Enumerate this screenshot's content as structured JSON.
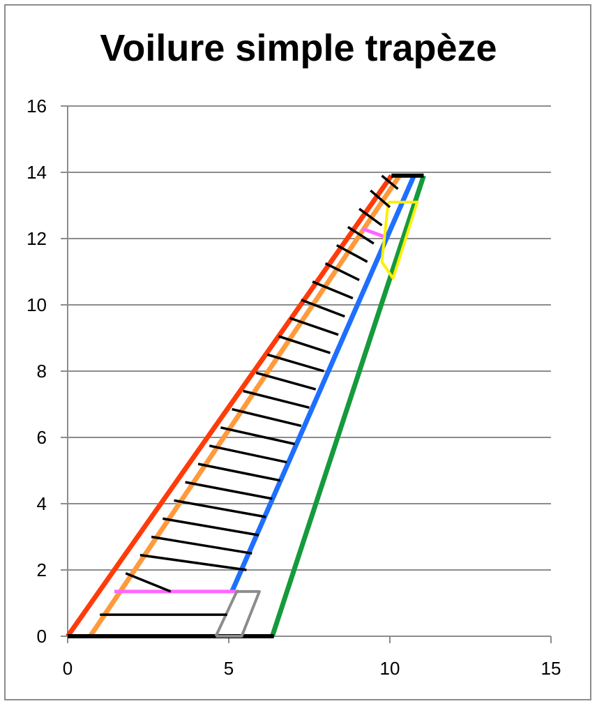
{
  "chart_data": {
    "type": "scatter",
    "title": "Voilure simple trapèze",
    "xlabel": "",
    "ylabel": "",
    "xlim": [
      0,
      15
    ],
    "ylim": [
      0,
      16
    ],
    "x_ticks": [
      0,
      5,
      10,
      15
    ],
    "y_ticks": [
      0,
      2,
      4,
      6,
      8,
      10,
      12,
      14,
      16
    ],
    "grid": {
      "horizontal": true,
      "vertical": false
    },
    "legend": "none",
    "series": [
      {
        "color": "#ff3b0a",
        "width": 7,
        "points": [
          [
            0,
            0
          ],
          [
            10.05,
            13.9
          ]
        ]
      },
      {
        "color": "#ff9a3c",
        "width": 7,
        "points": [
          [
            0.7,
            0
          ],
          [
            10.3,
            13.9
          ]
        ]
      },
      {
        "color": "#1e6fff",
        "width": 7,
        "points": [
          [
            5.1,
            1.35
          ],
          [
            10.75,
            13.9
          ]
        ]
      },
      {
        "color": "#159a3c",
        "width": 7,
        "points": [
          [
            6.35,
            0
          ],
          [
            11.05,
            13.9
          ]
        ]
      },
      {
        "color": "#000000",
        "width": 6,
        "points": [
          [
            0,
            0
          ],
          [
            6.4,
            0
          ]
        ]
      },
      {
        "color": "#000000",
        "width": 6,
        "points": [
          [
            10.05,
            13.9
          ],
          [
            11.05,
            13.9
          ]
        ]
      },
      {
        "color": "#ff66ff",
        "width": 5,
        "points": [
          [
            1.45,
            1.35
          ],
          [
            5.3,
            1.35
          ]
        ]
      },
      {
        "color": "#ff66ff",
        "width": 5,
        "points": [
          [
            9.15,
            12.3
          ],
          [
            9.85,
            12.05
          ]
        ]
      },
      {
        "color": "#8c8c8c",
        "width": 4,
        "points": [
          [
            4.6,
            0
          ],
          [
            5.4,
            0
          ],
          [
            5.95,
            1.35
          ],
          [
            5.25,
            1.35
          ],
          [
            4.6,
            0
          ]
        ]
      },
      {
        "color": "#ffee00",
        "width": 4,
        "points": [
          [
            9.95,
            13.1
          ],
          [
            10.85,
            13.1
          ],
          [
            10.1,
            10.8
          ],
          [
            9.75,
            11.3
          ],
          [
            9.95,
            13.1
          ]
        ]
      },
      {
        "color": "#000000",
        "width": 3.5,
        "points": [
          [
            1,
            0.65
          ],
          [
            4.95,
            0.65
          ]
        ]
      },
      {
        "color": "#000000",
        "width": 3.5,
        "points": [
          [
            1.8,
            1.9
          ],
          [
            3.2,
            1.35
          ]
        ]
      },
      {
        "color": "#000000",
        "width": 3.5,
        "points": [
          [
            2.25,
            2.45
          ],
          [
            5.55,
            2.0
          ]
        ]
      },
      {
        "color": "#000000",
        "width": 3.5,
        "points": [
          [
            2.6,
            3.0
          ],
          [
            5.72,
            2.5
          ]
        ]
      },
      {
        "color": "#000000",
        "width": 3.5,
        "points": [
          [
            2.95,
            3.55
          ],
          [
            5.93,
            3.05
          ]
        ]
      },
      {
        "color": "#000000",
        "width": 3.5,
        "points": [
          [
            3.3,
            4.1
          ],
          [
            6.15,
            3.6
          ]
        ]
      },
      {
        "color": "#000000",
        "width": 3.5,
        "points": [
          [
            3.65,
            4.65
          ],
          [
            6.35,
            4.15
          ]
        ]
      },
      {
        "color": "#000000",
        "width": 3.5,
        "points": [
          [
            4.05,
            5.2
          ],
          [
            6.6,
            4.7
          ]
        ]
      },
      {
        "color": "#000000",
        "width": 3.5,
        "points": [
          [
            4.4,
            5.75
          ],
          [
            6.8,
            5.25
          ]
        ]
      },
      {
        "color": "#000000",
        "width": 3.5,
        "points": [
          [
            4.75,
            6.3
          ],
          [
            7.05,
            5.8
          ]
        ]
      },
      {
        "color": "#000000",
        "width": 3.5,
        "points": [
          [
            5.1,
            6.85
          ],
          [
            7.25,
            6.35
          ]
        ]
      },
      {
        "color": "#000000",
        "width": 3.5,
        "points": [
          [
            5.45,
            7.4
          ],
          [
            7.5,
            6.9
          ]
        ]
      },
      {
        "color": "#000000",
        "width": 3.5,
        "points": [
          [
            5.85,
            7.95
          ],
          [
            7.7,
            7.45
          ]
        ]
      },
      {
        "color": "#000000",
        "width": 3.5,
        "points": [
          [
            6.2,
            8.5
          ],
          [
            7.95,
            8.0
          ]
        ]
      },
      {
        "color": "#000000",
        "width": 3.5,
        "points": [
          [
            6.55,
            9.05
          ],
          [
            8.15,
            8.55
          ]
        ]
      },
      {
        "color": "#000000",
        "width": 3.5,
        "points": [
          [
            6.9,
            9.6
          ],
          [
            8.4,
            9.1
          ]
        ]
      },
      {
        "color": "#000000",
        "width": 3.5,
        "points": [
          [
            7.25,
            10.15
          ],
          [
            8.6,
            9.65
          ]
        ]
      },
      {
        "color": "#000000",
        "width": 3.5,
        "points": [
          [
            7.6,
            10.7
          ],
          [
            8.85,
            10.2
          ]
        ]
      },
      {
        "color": "#000000",
        "width": 3.5,
        "points": [
          [
            8.0,
            11.25
          ],
          [
            9.05,
            10.75
          ]
        ]
      },
      {
        "color": "#000000",
        "width": 3.5,
        "points": [
          [
            8.35,
            11.8
          ],
          [
            9.3,
            11.3
          ]
        ]
      },
      {
        "color": "#000000",
        "width": 3.5,
        "points": [
          [
            8.7,
            12.35
          ],
          [
            9.5,
            11.85
          ]
        ]
      },
      {
        "color": "#000000",
        "width": 3.5,
        "points": [
          [
            9.05,
            12.9
          ],
          [
            9.75,
            12.4
          ]
        ]
      },
      {
        "color": "#000000",
        "width": 3.5,
        "points": [
          [
            9.4,
            13.45
          ],
          [
            10.0,
            12.95
          ]
        ]
      },
      {
        "color": "#000000",
        "width": 3.5,
        "points": [
          [
            9.75,
            13.9
          ],
          [
            10.25,
            13.5
          ]
        ]
      }
    ]
  }
}
